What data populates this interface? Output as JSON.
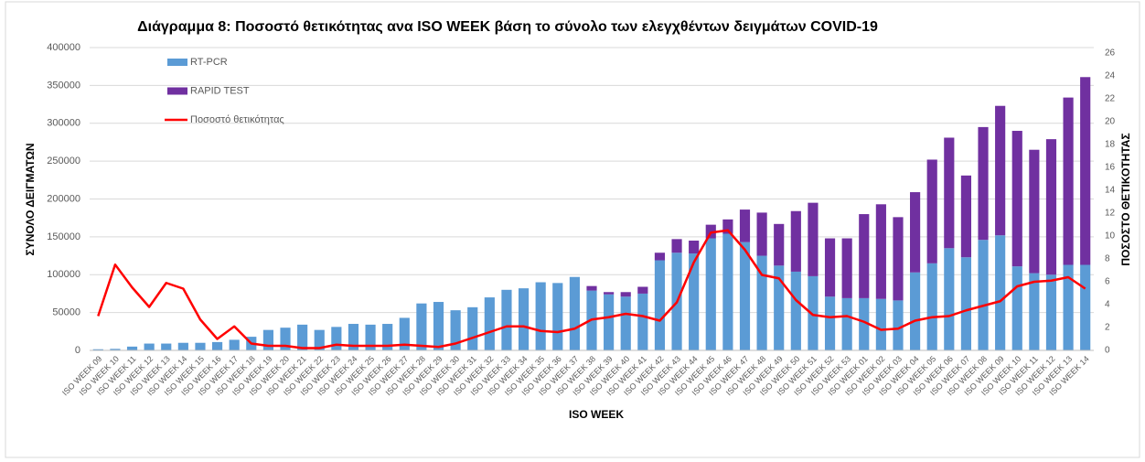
{
  "chart_data": {
    "type": "combo",
    "title": "Διάγραμμα 8: Ποσοστό  θετικότητας ανα ISO WEEK  βάση το σύνολο των ελεγχθέντων δειγμάτων COVID-19",
    "x_label": "ISO WEEK",
    "y_label": "ΣΥΝΟΛΟ ΔΕΙΓΜΑΤΩΝ",
    "y2_label": "ΠΟΣΟΣΤΟ ΘΕΤΙΚΟΤΗΤΑΣ",
    "categories": [
      "ISO WEEK 09",
      "ISO WEEK 10",
      "ISO WEEK 11",
      "ISO WEEK 12",
      "ISO WEEK 13",
      "ISO WEEK 14",
      "ISO WEEK 15",
      "ISO WEEK 16",
      "ISO WEEK 17",
      "ISO WEEK 18",
      "ISO WEEK 19",
      "ISO WEEK 20",
      "ISO WEEK 21",
      "ISO WEEK 22",
      "ISO WEEK 23",
      "ISO WEEK 24",
      "ISO WEEK 25",
      "ISO WEEK 26",
      "ISO WEEK 27",
      "ISO WEEK 28",
      "ISO WEEK 29",
      "ISO WEEK 30",
      "ISO WEEK 31",
      "ISO WEEK 32",
      "ISO WEEK 33",
      "ISO WEEK 34",
      "ISO WEEK 35",
      "ISO WEEK 36",
      "ISO WEEK 37",
      "ISO WEEK 38",
      "ISO WEEK 39",
      "ISO WEEK 40",
      "ISO WEEK 41",
      "ISO WEEK 42",
      "ISO WEEK 43",
      "ISO WEEK 44",
      "ISO WEEK 45",
      "ISO WEEK 46",
      "ISO WEEK 47",
      "ISO WEEK 48",
      "ISO WEEK 49",
      "ISO WEEK 50",
      "ISO WEEK 51",
      "ISO WEEK 52",
      "ISO WEEK 53",
      "ISO WEEK 01",
      "ISO WEEK 02",
      "ISO WEEK 03",
      "ISO WEEK 04",
      "ISO WEEK 05",
      "ISO WEEK 06",
      "ISO WEEK 07",
      "ISO WEEK 08",
      "ISO WEEK 09",
      "ISO WEEK 10",
      "ISO WEEK 11",
      "ISO WEEK 12",
      "ISO WEEK 13",
      "ISO WEEK 14"
    ],
    "series": [
      {
        "name": "RT-PCR",
        "color": "#5b9bd5",
        "stack": true,
        "values": [
          1500,
          2000,
          5000,
          9000,
          9000,
          10000,
          10000,
          11000,
          14000,
          18000,
          27000,
          30000,
          34000,
          27000,
          31000,
          35000,
          34000,
          35000,
          43000,
          62000,
          64000,
          53000,
          57000,
          70000,
          80000,
          82000,
          90000,
          89000,
          97000,
          79000,
          74000,
          71000,
          75000,
          119000,
          129000,
          128000,
          148000,
          154000,
          143000,
          125000,
          112000,
          104000,
          98000,
          71000,
          69000,
          69000,
          68000,
          66000,
          103000,
          115000,
          135000,
          123000,
          146000,
          152000,
          111000,
          102000,
          100000,
          113000,
          113000
        ]
      },
      {
        "name": "RAPID TEST",
        "color": "#7030a0",
        "stack": true,
        "values": [
          0,
          0,
          0,
          0,
          0,
          0,
          0,
          0,
          0,
          0,
          0,
          0,
          0,
          0,
          0,
          0,
          0,
          0,
          0,
          0,
          0,
          0,
          0,
          0,
          0,
          0,
          0,
          0,
          0,
          6000,
          3000,
          6000,
          9000,
          10000,
          18000,
          17000,
          18000,
          19000,
          43000,
          57000,
          55000,
          80000,
          97000,
          77000,
          79000,
          111000,
          125000,
          110000,
          106000,
          137000,
          146000,
          108000,
          149000,
          171000,
          179000,
          163000,
          179000,
          221000,
          248000
        ]
      },
      {
        "name": "Ποσοστό θετικότητας",
        "color": "#ff0000",
        "type": "line",
        "axis": "y2",
        "values": [
          3.0,
          7.5,
          5.5,
          3.8,
          5.9,
          5.4,
          2.7,
          1.0,
          2.1,
          0.6,
          0.4,
          0.4,
          0.2,
          0.2,
          0.5,
          0.4,
          0.4,
          0.4,
          0.5,
          0.4,
          0.3,
          0.6,
          1.1,
          1.6,
          2.1,
          2.1,
          1.7,
          1.6,
          1.9,
          2.7,
          2.9,
          3.2,
          3.0,
          2.6,
          4.2,
          7.7,
          10.3,
          10.5,
          8.8,
          6.6,
          6.3,
          4.4,
          3.1,
          2.9,
          3.0,
          2.5,
          1.8,
          1.9,
          2.6,
          2.9,
          3.0,
          3.5,
          3.9,
          4.3,
          5.6,
          6.0,
          6.1,
          6.4,
          5.4
        ]
      }
    ],
    "ylim": [
      0,
      400000
    ],
    "yticks": [
      0,
      50000,
      100000,
      150000,
      200000,
      250000,
      300000,
      350000,
      400000
    ],
    "y2lim": [
      0,
      26
    ],
    "y2ticks": [
      0,
      2,
      4,
      6,
      8,
      10,
      12,
      14,
      16,
      18,
      20,
      22,
      24,
      26
    ],
    "grid": true
  }
}
